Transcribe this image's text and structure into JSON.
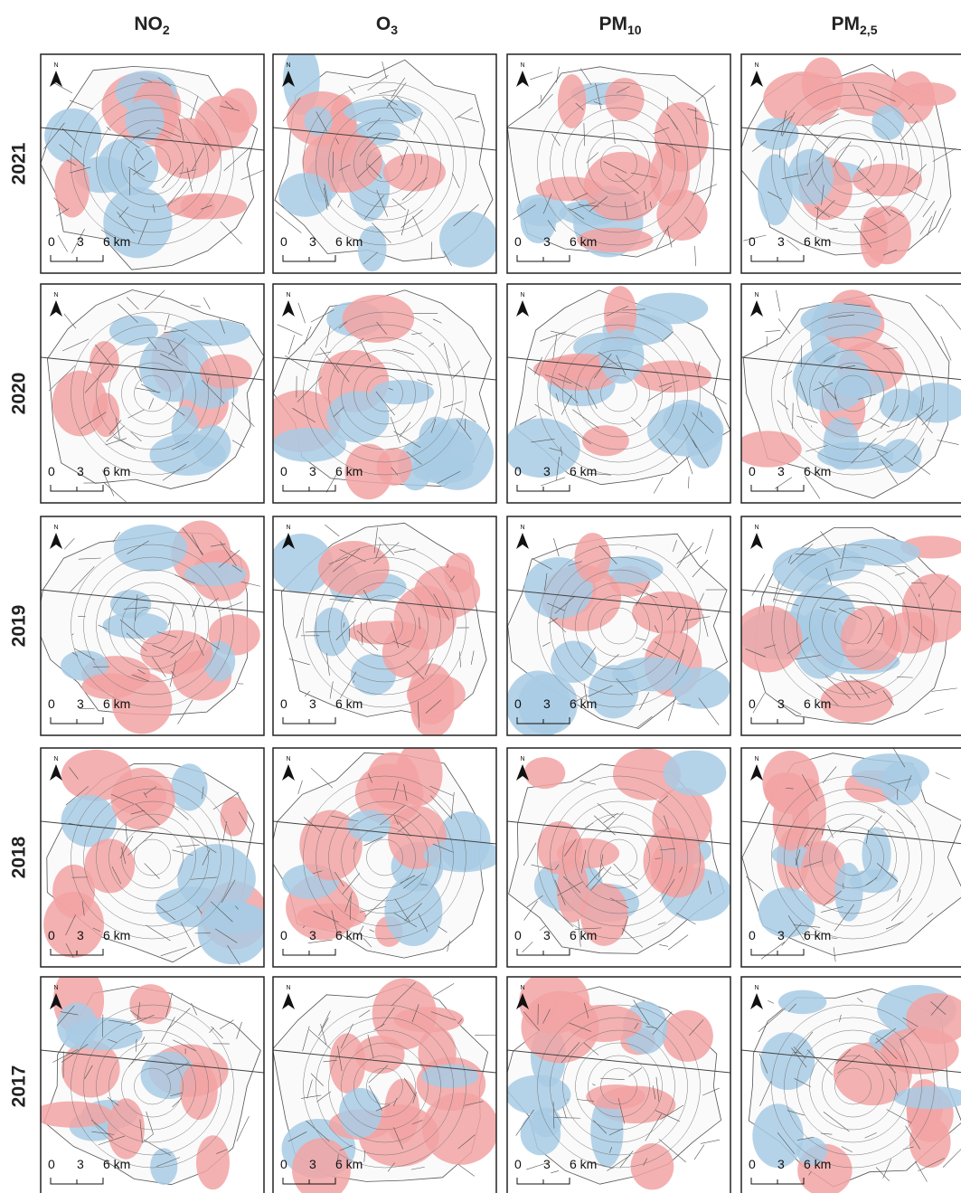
{
  "columns": [
    {
      "name": "NO",
      "subscript": "2"
    },
    {
      "name": "O",
      "subscript": "3"
    },
    {
      "name": "PM",
      "subscript": "10"
    },
    {
      "name": "PM",
      "subscript": "2,5"
    }
  ],
  "rows": [
    "2021",
    "2020",
    "2019",
    "2018",
    "2017"
  ],
  "map": {
    "north": "N",
    "scale_labels": [
      "0",
      "3",
      "6 km"
    ]
  }
}
